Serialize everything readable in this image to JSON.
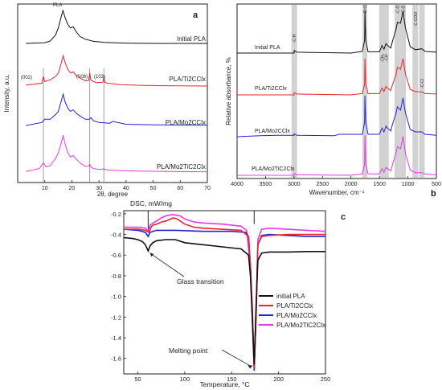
{
  "colors": {
    "black": "#111111",
    "red": "#e8262b",
    "blue": "#2323d6",
    "magenta": "#e23ce6",
    "band": "#d2d2d2"
  },
  "chart_data": [
    {
      "type": "line",
      "panel_label": "a",
      "xlabel": "2θ, degree",
      "ylabel": "Intensity, a.u.",
      "xlim": [
        0,
        70
      ],
      "xticks": [
        "10",
        "20",
        "30",
        "40",
        "50",
        "60",
        "70"
      ],
      "peak_labels": [
        "PLA",
        "(002)",
        "(008)",
        "(103)"
      ],
      "marker_lines_x": [
        9.5,
        26.6,
        31.8
      ],
      "series": [
        {
          "name": "Initial PLA",
          "x": [
            3,
            10,
            12,
            14,
            15,
            16,
            16.7,
            17.5,
            18.5,
            19.5,
            20.5,
            21.5,
            23,
            25,
            28,
            32,
            40,
            50,
            60,
            70
          ],
          "y": [
            0,
            0.2,
            0.7,
            2.5,
            4.5,
            7.5,
            9.5,
            7.5,
            5.5,
            4.5,
            4.8,
            3.5,
            2,
            1.2,
            0.6,
            0.3,
            0.1,
            0,
            0,
            0
          ]
        },
        {
          "name": "PLA/Ti2CClx",
          "x": [
            3,
            9,
            9.5,
            10,
            12,
            14,
            15,
            16,
            16.8,
            17.5,
            18.5,
            19.5,
            20.5,
            21.5,
            23,
            25,
            26.2,
            26.6,
            27,
            28,
            29,
            31.4,
            31.8,
            32.2,
            33,
            38,
            45,
            55,
            70
          ],
          "y": [
            1,
            1.5,
            3.5,
            2,
            2.5,
            3.5,
            4.5,
            7,
            9.5,
            7.5,
            5.5,
            4.5,
            4.8,
            3.8,
            3,
            2.2,
            2.3,
            4.5,
            2.5,
            2,
            1.7,
            1.8,
            3.2,
            1.8,
            1.5,
            1.1,
            0.9,
            0.8,
            0.7
          ]
        },
        {
          "name": "PLA/Mo2CClx",
          "x": [
            3,
            9,
            10,
            12,
            14,
            15,
            16,
            16.8,
            17.5,
            18.5,
            19.5,
            20.5,
            21.5,
            23,
            25,
            26.5,
            27,
            28,
            30,
            34,
            35,
            40,
            50,
            70
          ],
          "y": [
            0.5,
            1.5,
            2.5,
            2.5,
            4,
            5,
            8,
            10.5,
            8,
            6,
            5,
            5.5,
            4.5,
            3.5,
            2.5,
            2.5,
            3,
            2,
            1.5,
            1.2,
            1.8,
            0.9,
            0.7,
            0.6
          ]
        },
        {
          "name": "PLA/Mo2TiC2Clx",
          "x": [
            3,
            8,
            9.5,
            10.5,
            12,
            14,
            15,
            16,
            16.8,
            17.5,
            18.5,
            19.5,
            20.5,
            21.5,
            23,
            25,
            26.2,
            26.6,
            27,
            28,
            30,
            31.8,
            33,
            38,
            45,
            55,
            70
          ],
          "y": [
            0.5,
            1.5,
            3.5,
            2,
            2.5,
            5,
            7,
            10,
            13,
            10,
            7,
            5.5,
            6,
            4.8,
            3.5,
            2.2,
            2.3,
            3,
            2,
            1.5,
            1.2,
            1.4,
            1,
            0.8,
            0.6,
            0.5,
            0.4
          ]
        }
      ]
    },
    {
      "type": "line",
      "panel_label": "b",
      "xlabel": "Wavenumber, cm⁻¹",
      "ylabel": "Relative absorbance, %",
      "xlim": [
        4000,
        500
      ],
      "xticks": [
        "4000",
        "3500",
        "3000",
        "2500",
        "2000",
        "1500",
        "1000",
        "500"
      ],
      "bands": [
        {
          "label": "-C-H",
          "x": 2995
        },
        {
          "label": "-C=O",
          "x": 1755
        },
        {
          "label": "-CH₃",
          "x": 1455
        },
        {
          "label": "-CH",
          "x": 1385
        },
        {
          "label": "-C-O",
          "x": 1185
        },
        {
          "label": "-C-O",
          "x": 1085
        },
        {
          "label": "-C-COO",
          "x": 870
        },
        {
          "label": "-C-Cl",
          "x": 755
        }
      ],
      "series": [
        {
          "name": "Initial PLA",
          "x": [
            4000,
            3200,
            3000,
            2995,
            2950,
            2000,
            1800,
            1760,
            1755,
            1740,
            1700,
            1500,
            1455,
            1420,
            1385,
            1360,
            1300,
            1270,
            1210,
            1185,
            1130,
            1090,
            1085,
            1045,
            960,
            870,
            755,
            700,
            500
          ],
          "y": [
            0,
            0,
            0,
            0.6,
            0.2,
            0,
            0.4,
            3,
            10,
            3,
            0.3,
            0.3,
            1.8,
            0.9,
            2.2,
            1.8,
            1.2,
            2.8,
            5.5,
            7.2,
            7,
            9.5,
            9.8,
            6,
            1.5,
            0.8,
            1,
            0.4,
            0.2
          ]
        },
        {
          "name": "PLA/Ti2CClx",
          "x": [
            4000,
            3200,
            3000,
            2995,
            2950,
            2000,
            1800,
            1760,
            1755,
            1740,
            1700,
            1500,
            1455,
            1420,
            1385,
            1360,
            1300,
            1270,
            1210,
            1185,
            1130,
            1090,
            1085,
            1045,
            960,
            870,
            755,
            700,
            500
          ],
          "y": [
            0,
            0,
            0,
            0.5,
            0.2,
            0,
            0.3,
            2.5,
            8.5,
            2.5,
            0.3,
            0.3,
            1.6,
            0.8,
            2,
            1.6,
            1,
            2.4,
            4.6,
            6.5,
            6,
            8.2,
            8.5,
            5,
            1.3,
            0.8,
            0.7,
            0.3,
            0.2
          ]
        },
        {
          "name": "PLA/Mo2CClx",
          "x": [
            4000,
            3600,
            3300,
            3000,
            2995,
            2950,
            2300,
            2200,
            1800,
            1760,
            1755,
            1740,
            1700,
            1500,
            1455,
            1420,
            1385,
            1360,
            1300,
            1270,
            1210,
            1185,
            1130,
            1090,
            1085,
            1045,
            960,
            870,
            755,
            700,
            500
          ],
          "y": [
            0,
            0.2,
            0.3,
            0.3,
            0.6,
            0.3,
            0.2,
            0.5,
            0.5,
            3,
            8.5,
            3,
            0.5,
            0.5,
            1.8,
            1,
            2.2,
            1.8,
            1.2,
            2.6,
            4.8,
            6.2,
            5.5,
            7.8,
            8,
            5,
            1.5,
            1,
            1,
            0.5,
            0.3
          ]
        },
        {
          "name": "PLA/Mo2TiC2Clx",
          "x": [
            4000,
            3200,
            3000,
            2995,
            2950,
            2000,
            1800,
            1760,
            1755,
            1740,
            1700,
            1500,
            1455,
            1420,
            1385,
            1360,
            1300,
            1270,
            1210,
            1185,
            1130,
            1090,
            1085,
            1045,
            960,
            870,
            755,
            700,
            500
          ],
          "y": [
            0,
            0,
            0,
            0.4,
            0.1,
            0,
            0.3,
            2.5,
            9,
            2.5,
            0.3,
            0.3,
            1.5,
            0.7,
            1.8,
            1.5,
            1,
            2.4,
            5,
            6.5,
            6,
            8.5,
            8.8,
            5,
            1.2,
            0.6,
            0.6,
            0.3,
            0.1
          ]
        }
      ]
    },
    {
      "type": "line",
      "panel_label": "c",
      "xlabel": "Temperature, °C",
      "ylabel": "DSC, mW/mg",
      "xlim": [
        35,
        250
      ],
      "ylim": [
        -1.75,
        -0.17
      ],
      "xticks": [
        "50",
        "100",
        "150",
        "200",
        "250"
      ],
      "yticks": [
        "-0.2",
        "-0.4",
        "-0.6",
        "-0.8",
        "-1.0",
        "-1.2",
        "-1.4",
        "-1.6"
      ],
      "annotations": [
        "Glass transition",
        "Melting point"
      ],
      "legend_position": "lower-right",
      "series": [
        {
          "name": "initial PLA",
          "x": [
            35,
            45,
            50,
            55,
            58,
            61,
            63,
            66,
            70,
            80,
            90,
            100,
            120,
            140,
            160,
            168,
            170,
            172,
            174,
            176,
            178,
            182,
            190,
            210,
            230,
            250
          ],
          "y": [
            -0.43,
            -0.44,
            -0.45,
            -0.47,
            -0.5,
            -0.56,
            -0.51,
            -0.48,
            -0.46,
            -0.45,
            -0.45,
            -0.48,
            -0.5,
            -0.52,
            -0.54,
            -0.6,
            -0.8,
            -1.2,
            -1.66,
            -1.1,
            -0.65,
            -0.58,
            -0.57,
            -0.57,
            -0.565,
            -0.565
          ]
        },
        {
          "name": "PLA/Ti2CClx",
          "x": [
            35,
            50,
            58,
            62,
            64,
            66,
            70,
            75,
            80,
            85,
            88,
            92,
            100,
            110,
            120,
            140,
            160,
            168,
            170,
            172,
            174,
            176,
            178,
            182,
            190,
            210,
            230,
            250
          ],
          "y": [
            -0.35,
            -0.35,
            -0.36,
            -0.38,
            -0.33,
            -0.31,
            -0.3,
            -0.28,
            -0.27,
            -0.25,
            -0.24,
            -0.25,
            -0.3,
            -0.33,
            -0.34,
            -0.35,
            -0.36,
            -0.42,
            -0.7,
            -1.1,
            -1.7,
            -1.2,
            -0.5,
            -0.42,
            -0.41,
            -0.4,
            -0.4,
            -0.4
          ]
        },
        {
          "name": "PLA/Mo2CClx",
          "x": [
            35,
            50,
            58,
            61,
            63,
            66,
            70,
            90,
            120,
            150,
            165,
            168,
            170,
            172,
            174,
            176,
            178,
            182,
            190,
            210,
            230,
            250
          ],
          "y": [
            -0.35,
            -0.36,
            -0.38,
            -0.42,
            -0.38,
            -0.37,
            -0.36,
            -0.36,
            -0.37,
            -0.37,
            -0.38,
            -0.42,
            -0.7,
            -1.2,
            -1.72,
            -1.2,
            -0.5,
            -0.41,
            -0.4,
            -0.41,
            -0.42,
            -0.42
          ]
        },
        {
          "name": "PLA/Mo2TiC2Clx",
          "x": [
            35,
            50,
            58,
            61,
            63,
            66,
            70,
            75,
            80,
            85,
            88,
            95,
            100,
            110,
            120,
            140,
            160,
            166,
            170,
            172,
            174,
            176,
            178,
            182,
            190,
            210,
            230,
            250
          ],
          "y": [
            -0.33,
            -0.33,
            -0.34,
            -0.37,
            -0.31,
            -0.29,
            -0.27,
            -0.24,
            -0.22,
            -0.21,
            -0.21,
            -0.22,
            -0.25,
            -0.28,
            -0.29,
            -0.3,
            -0.32,
            -0.36,
            -0.7,
            -1.1,
            -1.7,
            -1.15,
            -0.45,
            -0.35,
            -0.34,
            -0.35,
            -0.36,
            -0.37
          ]
        }
      ]
    }
  ]
}
